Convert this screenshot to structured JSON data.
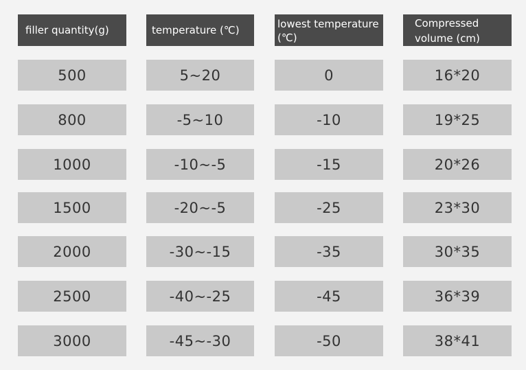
{
  "headers": [
    "filler quantity(g)",
    "temperature (℃)",
    "lowest temperature\n(℃)",
    "Compressed\nvolume (cm)"
  ],
  "rows": [
    [
      "500",
      "5~20",
      "0",
      "16*20"
    ],
    [
      "800",
      "-5~10",
      "-10",
      "19*25"
    ],
    [
      "1000",
      "-10~-5",
      "-15",
      "20*26"
    ],
    [
      "1500",
      "-20~-5",
      "-25",
      "23*30"
    ],
    [
      "2000",
      "-30~-15",
      "-35",
      "30*35"
    ],
    [
      "2500",
      "-40~-25",
      "-45",
      "36*39"
    ],
    [
      "3000",
      "-45~-30",
      "-50",
      "38*41"
    ]
  ],
  "colors": {
    "page_background": "#f3f3f3",
    "header_background": "#4a4a4a",
    "header_text": "#ffffff",
    "cell_background": "#c9c9c9",
    "cell_text": "#333333"
  }
}
